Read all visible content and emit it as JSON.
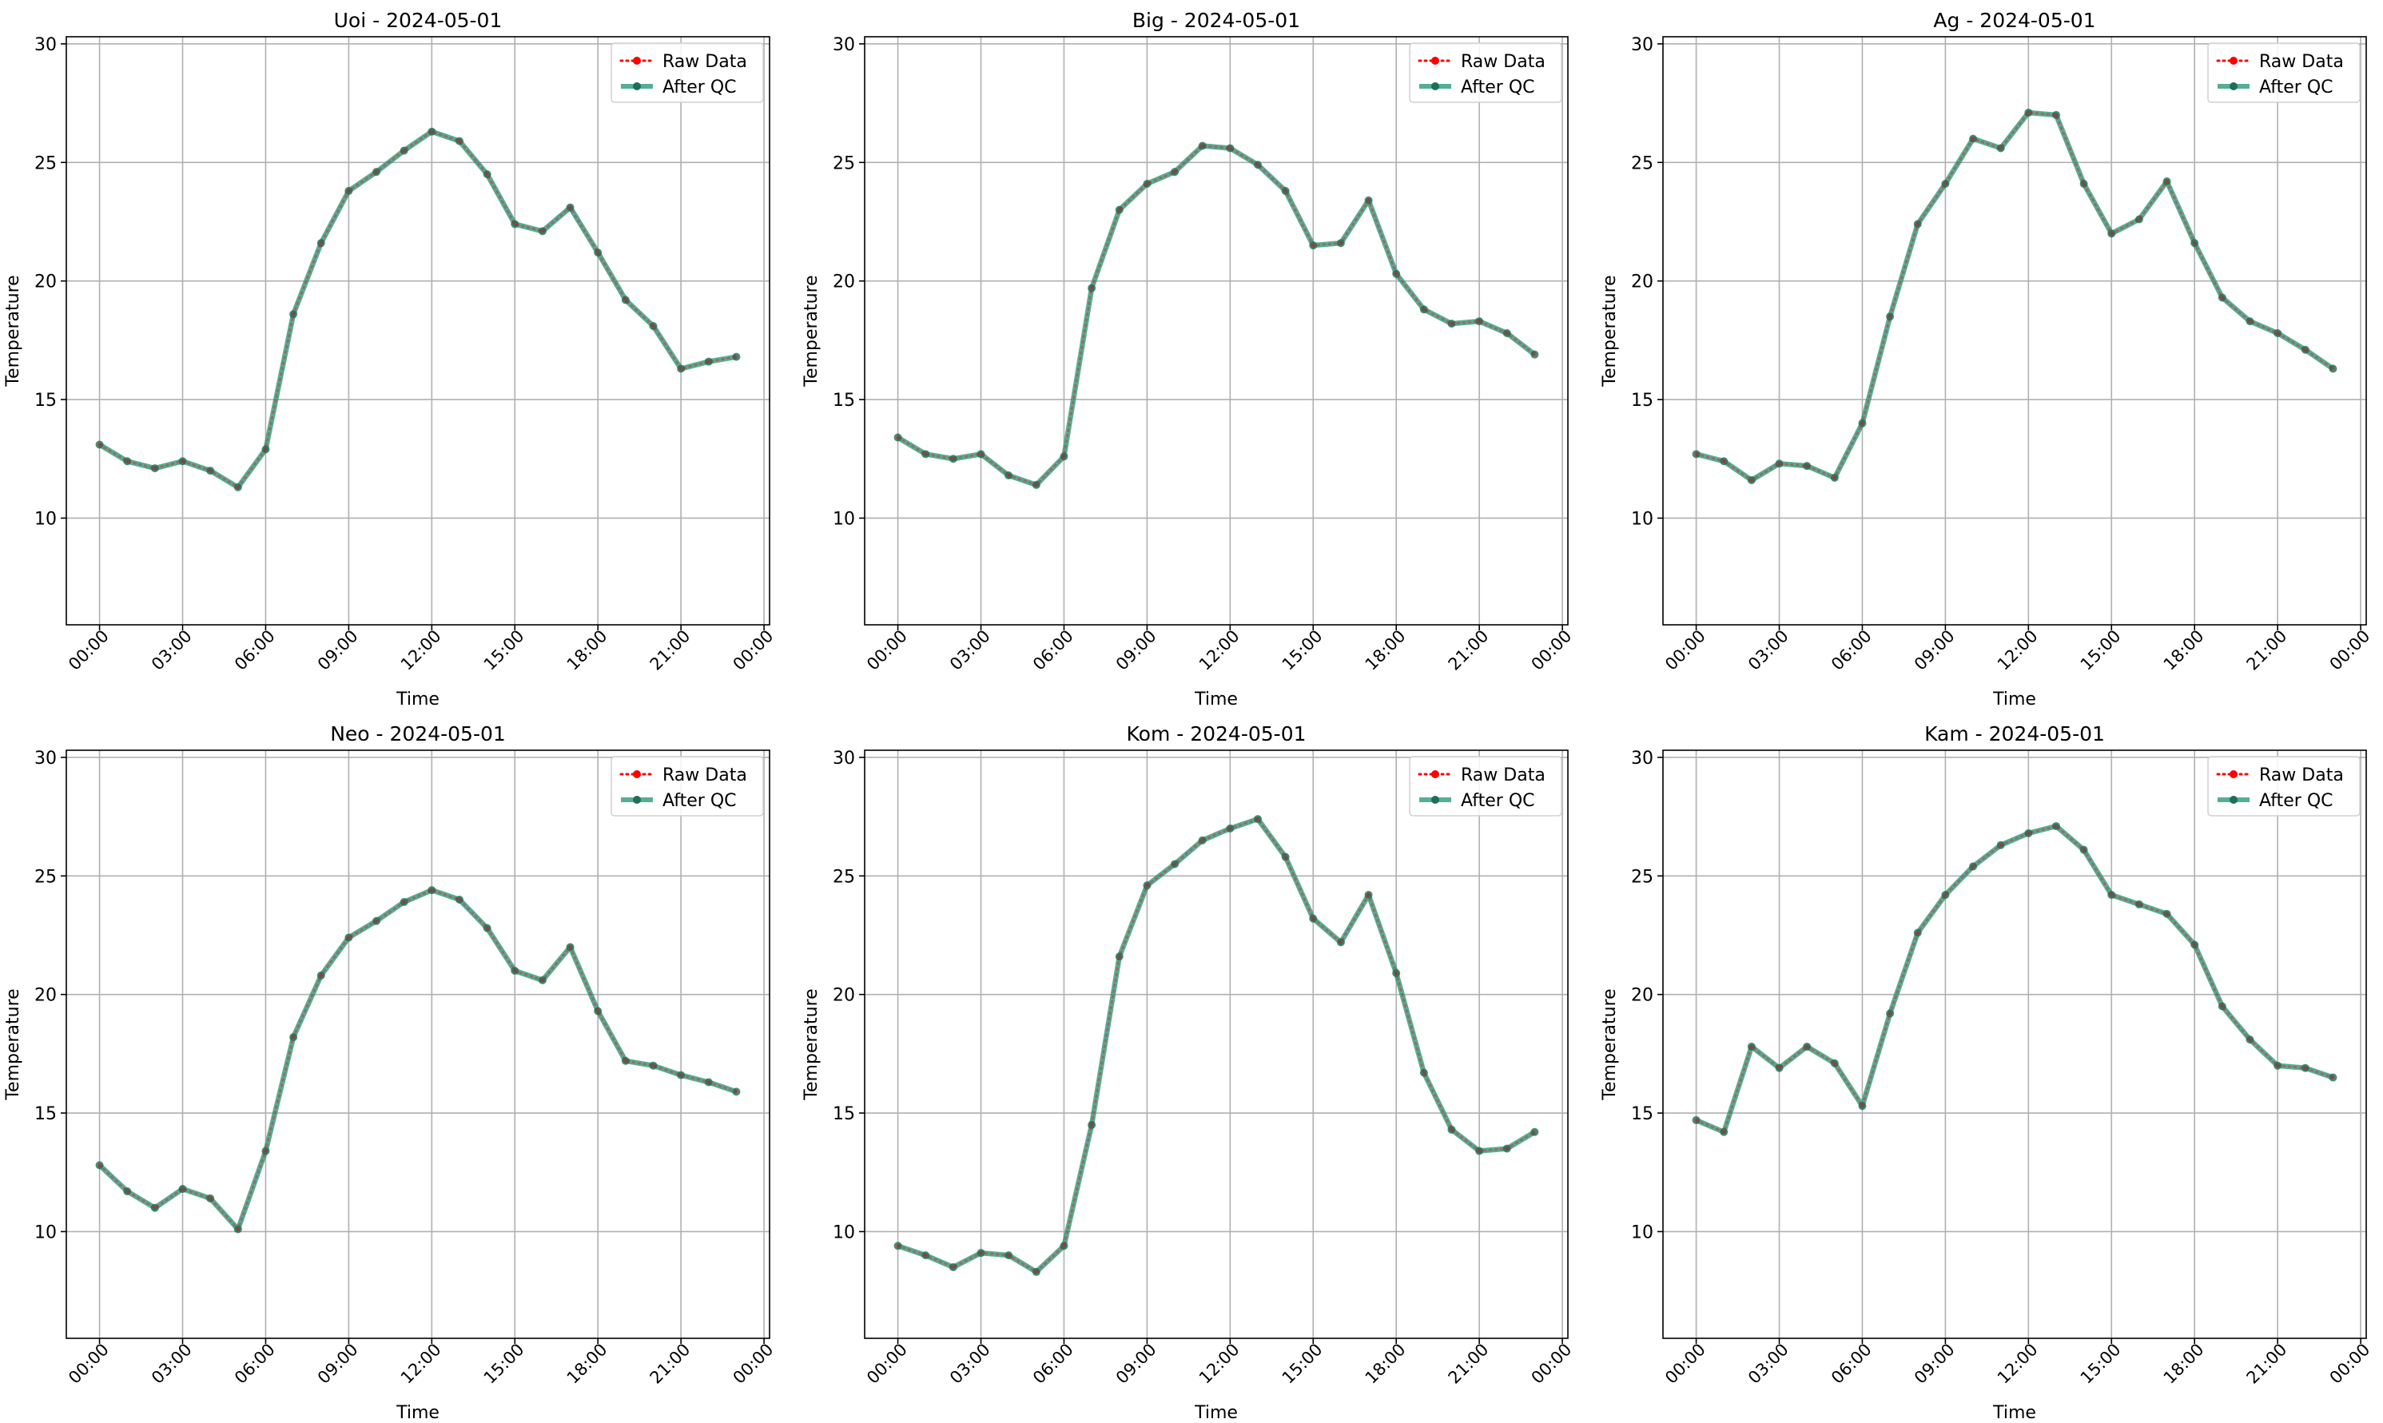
{
  "chart_data": [
    {
      "type": "line",
      "title": "Uoi - 2024-05-01",
      "xlabel": "Time",
      "ylabel": "Temperature",
      "x_ticks": [
        "00:00",
        "03:00",
        "06:00",
        "09:00",
        "12:00",
        "15:00",
        "18:00",
        "21:00",
        "00:00"
      ],
      "y_ticks": [
        10,
        15,
        20,
        25,
        30
      ],
      "xlim_hours": [
        -1.2,
        24.2
      ],
      "ylim": [
        5.5,
        30.3
      ],
      "grid": true,
      "legend_position": "top-right",
      "x_hours": [
        0,
        1,
        2,
        3,
        4,
        5,
        6,
        7,
        8,
        9,
        10,
        11,
        12,
        13,
        14,
        15,
        16,
        17,
        18,
        19,
        20,
        21,
        22,
        23
      ],
      "series": [
        {
          "name": "Raw Data",
          "color": "#ff0000",
          "style": "dotted",
          "values": [
            13.1,
            12.4,
            12.1,
            12.4,
            12.0,
            11.3,
            12.9,
            18.6,
            21.6,
            23.8,
            24.6,
            25.5,
            26.3,
            25.9,
            24.5,
            22.4,
            22.1,
            23.1,
            21.2,
            19.2,
            18.1,
            16.3,
            16.6,
            16.8
          ]
        },
        {
          "name": "After QC",
          "color": "#2a9a7c",
          "style": "solid",
          "values": [
            13.1,
            12.4,
            12.1,
            12.4,
            12.0,
            11.3,
            12.9,
            18.6,
            21.6,
            23.8,
            24.6,
            25.5,
            26.3,
            25.9,
            24.5,
            22.4,
            22.1,
            23.1,
            21.2,
            19.2,
            18.1,
            16.3,
            16.6,
            16.8
          ]
        }
      ]
    },
    {
      "type": "line",
      "title": "Big - 2024-05-01",
      "xlabel": "Time",
      "ylabel": "Temperature",
      "x_ticks": [
        "00:00",
        "03:00",
        "06:00",
        "09:00",
        "12:00",
        "15:00",
        "18:00",
        "21:00",
        "00:00"
      ],
      "y_ticks": [
        10,
        15,
        20,
        25,
        30
      ],
      "xlim_hours": [
        -1.2,
        24.2
      ],
      "ylim": [
        5.5,
        30.3
      ],
      "grid": true,
      "legend_position": "top-right",
      "x_hours": [
        0,
        1,
        2,
        3,
        4,
        5,
        6,
        7,
        8,
        9,
        10,
        11,
        12,
        13,
        14,
        15,
        16,
        17,
        18,
        19,
        20,
        21,
        22,
        23
      ],
      "series": [
        {
          "name": "Raw Data",
          "color": "#ff0000",
          "style": "dotted",
          "values": [
            13.4,
            12.7,
            12.5,
            12.7,
            11.8,
            11.4,
            12.6,
            19.7,
            23.0,
            24.1,
            24.6,
            25.7,
            25.6,
            24.9,
            23.8,
            21.5,
            21.6,
            23.4,
            20.3,
            18.8,
            18.2,
            18.3,
            17.8,
            16.9
          ]
        },
        {
          "name": "After QC",
          "color": "#2a9a7c",
          "style": "solid",
          "values": [
            13.4,
            12.7,
            12.5,
            12.7,
            11.8,
            11.4,
            12.6,
            19.7,
            23.0,
            24.1,
            24.6,
            25.7,
            25.6,
            24.9,
            23.8,
            21.5,
            21.6,
            23.4,
            20.3,
            18.8,
            18.2,
            18.3,
            17.8,
            16.9
          ]
        }
      ]
    },
    {
      "type": "line",
      "title": "Ag - 2024-05-01",
      "xlabel": "Time",
      "ylabel": "Temperature",
      "x_ticks": [
        "00:00",
        "03:00",
        "06:00",
        "09:00",
        "12:00",
        "15:00",
        "18:00",
        "21:00",
        "00:00"
      ],
      "y_ticks": [
        10,
        15,
        20,
        25,
        30
      ],
      "xlim_hours": [
        -1.2,
        24.2
      ],
      "ylim": [
        5.5,
        30.3
      ],
      "grid": true,
      "legend_position": "top-right",
      "x_hours": [
        0,
        1,
        2,
        3,
        4,
        5,
        6,
        7,
        8,
        9,
        10,
        11,
        12,
        13,
        14,
        15,
        16,
        17,
        18,
        19,
        20,
        21,
        22,
        23
      ],
      "series": [
        {
          "name": "Raw Data",
          "color": "#ff0000",
          "style": "dotted",
          "values": [
            12.7,
            12.4,
            11.6,
            12.3,
            12.2,
            11.7,
            14.0,
            18.5,
            22.4,
            24.1,
            26.0,
            25.6,
            27.1,
            27.0,
            24.1,
            22.0,
            22.6,
            24.2,
            21.6,
            19.3,
            18.3,
            17.8,
            17.1,
            16.3
          ]
        },
        {
          "name": "After QC",
          "color": "#2a9a7c",
          "style": "solid",
          "values": [
            12.7,
            12.4,
            11.6,
            12.3,
            12.2,
            11.7,
            14.0,
            18.5,
            22.4,
            24.1,
            26.0,
            25.6,
            27.1,
            27.0,
            24.1,
            22.0,
            22.6,
            24.2,
            21.6,
            19.3,
            18.3,
            17.8,
            17.1,
            16.3
          ]
        }
      ]
    },
    {
      "type": "line",
      "title": "Neo - 2024-05-01",
      "xlabel": "Time",
      "ylabel": "Temperature",
      "x_ticks": [
        "00:00",
        "03:00",
        "06:00",
        "09:00",
        "12:00",
        "15:00",
        "18:00",
        "21:00",
        "00:00"
      ],
      "y_ticks": [
        10,
        15,
        20,
        25,
        30
      ],
      "xlim_hours": [
        -1.2,
        24.2
      ],
      "ylim": [
        5.5,
        30.3
      ],
      "grid": true,
      "legend_position": "top-right",
      "x_hours": [
        0,
        1,
        2,
        3,
        4,
        5,
        6,
        7,
        8,
        9,
        10,
        11,
        12,
        13,
        14,
        15,
        16,
        17,
        18,
        19,
        20,
        21,
        22,
        23
      ],
      "series": [
        {
          "name": "Raw Data",
          "color": "#ff0000",
          "style": "dotted",
          "values": [
            12.8,
            11.7,
            11.0,
            11.8,
            11.4,
            10.1,
            13.4,
            18.2,
            20.8,
            22.4,
            23.1,
            23.9,
            24.4,
            24.0,
            22.8,
            21.0,
            20.6,
            22.0,
            19.3,
            17.2,
            17.0,
            16.6,
            16.3,
            15.9
          ]
        },
        {
          "name": "After QC",
          "color": "#2a9a7c",
          "style": "solid",
          "values": [
            12.8,
            11.7,
            11.0,
            11.8,
            11.4,
            10.1,
            13.4,
            18.2,
            20.8,
            22.4,
            23.1,
            23.9,
            24.4,
            24.0,
            22.8,
            21.0,
            20.6,
            22.0,
            19.3,
            17.2,
            17.0,
            16.6,
            16.3,
            15.9
          ]
        }
      ]
    },
    {
      "type": "line",
      "title": "Kom - 2024-05-01",
      "xlabel": "Time",
      "ylabel": "Temperature",
      "x_ticks": [
        "00:00",
        "03:00",
        "06:00",
        "09:00",
        "12:00",
        "15:00",
        "18:00",
        "21:00",
        "00:00"
      ],
      "y_ticks": [
        10,
        15,
        20,
        25,
        30
      ],
      "xlim_hours": [
        -1.2,
        24.2
      ],
      "ylim": [
        5.5,
        30.3
      ],
      "grid": true,
      "legend_position": "top-right",
      "x_hours": [
        0,
        1,
        2,
        3,
        4,
        5,
        6,
        7,
        8,
        9,
        10,
        11,
        12,
        13,
        14,
        15,
        16,
        17,
        18,
        19,
        20,
        21,
        22,
        23
      ],
      "series": [
        {
          "name": "Raw Data",
          "color": "#ff0000",
          "style": "dotted",
          "values": [
            9.4,
            9.0,
            8.5,
            9.1,
            9.0,
            8.3,
            9.4,
            14.5,
            21.6,
            24.6,
            25.5,
            26.5,
            27.0,
            27.4,
            25.8,
            23.2,
            22.2,
            24.2,
            20.9,
            16.7,
            14.3,
            13.4,
            13.5,
            14.2
          ]
        },
        {
          "name": "After QC",
          "color": "#2a9a7c",
          "style": "solid",
          "values": [
            9.4,
            9.0,
            8.5,
            9.1,
            9.0,
            8.3,
            9.4,
            14.5,
            21.6,
            24.6,
            25.5,
            26.5,
            27.0,
            27.4,
            25.8,
            23.2,
            22.2,
            24.2,
            20.9,
            16.7,
            14.3,
            13.4,
            13.5,
            14.2
          ]
        }
      ]
    },
    {
      "type": "line",
      "title": "Kam - 2024-05-01",
      "xlabel": "Time",
      "ylabel": "Temperature",
      "x_ticks": [
        "00:00",
        "03:00",
        "06:00",
        "09:00",
        "12:00",
        "15:00",
        "18:00",
        "21:00",
        "00:00"
      ],
      "y_ticks": [
        10,
        15,
        20,
        25,
        30
      ],
      "xlim_hours": [
        -1.2,
        24.2
      ],
      "ylim": [
        5.5,
        30.3
      ],
      "grid": true,
      "legend_position": "top-right",
      "x_hours": [
        0,
        1,
        2,
        3,
        4,
        5,
        6,
        7,
        8,
        9,
        10,
        11,
        12,
        13,
        14,
        15,
        16,
        17,
        18,
        19,
        20,
        21,
        22,
        23
      ],
      "series": [
        {
          "name": "Raw Data",
          "color": "#ff0000",
          "style": "dotted",
          "values": [
            14.7,
            14.2,
            17.8,
            16.9,
            17.8,
            17.1,
            15.3,
            19.2,
            22.6,
            24.2,
            25.4,
            26.3,
            26.8,
            27.1,
            26.1,
            24.2,
            23.8,
            23.4,
            22.1,
            19.5,
            18.1,
            17.0,
            16.9,
            16.5
          ]
        },
        {
          "name": "After QC",
          "color": "#2a9a7c",
          "style": "solid",
          "values": [
            14.7,
            14.2,
            17.8,
            16.9,
            17.8,
            17.1,
            15.3,
            19.2,
            22.6,
            24.2,
            25.4,
            26.3,
            26.8,
            27.1,
            26.1,
            24.2,
            23.8,
            23.4,
            22.1,
            19.5,
            18.1,
            17.0,
            16.9,
            16.5
          ]
        }
      ]
    }
  ]
}
